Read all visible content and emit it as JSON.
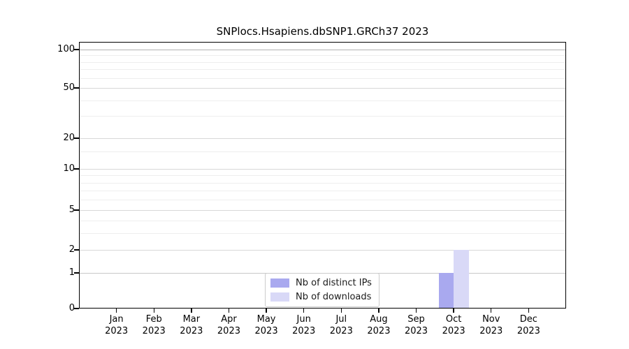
{
  "chart_data": {
    "type": "bar",
    "title": "SNPlocs.Hsapiens.dbSNP1.GRCh37 2023",
    "categories": [
      {
        "month": "Jan",
        "year": "2023"
      },
      {
        "month": "Feb",
        "year": "2023"
      },
      {
        "month": "Mar",
        "year": "2023"
      },
      {
        "month": "Apr",
        "year": "2023"
      },
      {
        "month": "May",
        "year": "2023"
      },
      {
        "month": "Jun",
        "year": "2023"
      },
      {
        "month": "Jul",
        "year": "2023"
      },
      {
        "month": "Aug",
        "year": "2023"
      },
      {
        "month": "Sep",
        "year": "2023"
      },
      {
        "month": "Oct",
        "year": "2023"
      },
      {
        "month": "Nov",
        "year": "2023"
      },
      {
        "month": "Dec",
        "year": "2023"
      }
    ],
    "series": [
      {
        "name": "Nb of distinct IPs",
        "color": "#a9a9ef",
        "values": [
          0,
          0,
          0,
          0,
          0,
          0,
          0,
          0,
          0,
          1,
          0,
          0
        ]
      },
      {
        "name": "Nb of downloads",
        "color": "#d9d9f7",
        "values": [
          0,
          0,
          0,
          0,
          0,
          0,
          0,
          0,
          0,
          2,
          0,
          0
        ]
      }
    ],
    "y_axis": {
      "scale": "log1p",
      "major_ticks": [
        0,
        1,
        2,
        5,
        10,
        20,
        50,
        100
      ],
      "minor_ticks": [
        3,
        4,
        6,
        7,
        8,
        9,
        15,
        30,
        40,
        60,
        70,
        80,
        90
      ],
      "ylim": [
        0,
        113
      ]
    },
    "legend": {
      "position": "inside-bottom-center"
    },
    "grid": "horizontal",
    "colors": {
      "frame": "#000000",
      "grid_major": "#d8d8d8",
      "grid_minor": "#eeeeee",
      "grid_decade": "#b3b3b3"
    }
  }
}
